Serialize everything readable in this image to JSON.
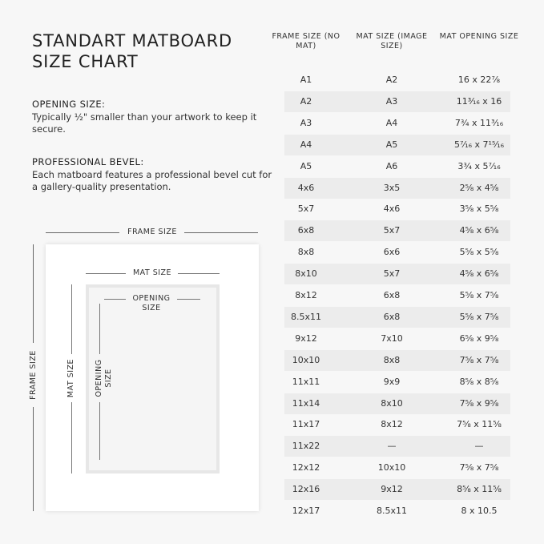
{
  "title": [
    "STANDART MATBOARD",
    "SIZE CHART"
  ],
  "opening": {
    "heading": "OPENING SIZE:",
    "text": "Typically ½\" smaller than your artwork to keep it secure."
  },
  "bevel": {
    "heading": "PROFESSIONAL BEVEL:",
    "text": "Each matboard features a professional bevel cut for a gallery-quality presentation."
  },
  "diagram": {
    "frame_size": "FRAME SIZE",
    "mat_size": "MAT SIZE",
    "opening_size": "OPENING SIZE"
  },
  "table": {
    "headers": [
      "FRAME SIZE (NO MAT)",
      "MAT SIZE (IMAGE SIZE)",
      "MAT OPENING SIZE"
    ],
    "rows": [
      [
        "A1",
        "A2",
        "16 x 22⅞"
      ],
      [
        "A2",
        "A3",
        "11³⁄₁₆ x 16"
      ],
      [
        "A3",
        "A4",
        "7¾ x 11³⁄₁₆"
      ],
      [
        "A4",
        "A5",
        "5⁷⁄₁₆ x 7¹⁵⁄₁₆"
      ],
      [
        "A5",
        "A6",
        "3¾ x 5⁷⁄₁₆"
      ],
      [
        "4x6",
        "3x5",
        "2⅝ x 4⅝"
      ],
      [
        "5x7",
        "4x6",
        "3⅝ x 5⅝"
      ],
      [
        "6x8",
        "5x7",
        "4⅝ x 6⅝"
      ],
      [
        "8x8",
        "6x6",
        "5⅝ x 5⅝"
      ],
      [
        "8x10",
        "5x7",
        "4⅝ x 6⅝"
      ],
      [
        "8x12",
        "6x8",
        "5⅝ x 7⅝"
      ],
      [
        "8.5x11",
        "6x8",
        "5⅝ x 7⅝"
      ],
      [
        "9x12",
        "7x10",
        "6⅝ x 9⅝"
      ],
      [
        "10x10",
        "8x8",
        "7⅝ x 7⅝"
      ],
      [
        "11x11",
        "9x9",
        "8⅝ x 8⅝"
      ],
      [
        "11x14",
        "8x10",
        "7⅝ x 9⅝"
      ],
      [
        "11x17",
        "8x12",
        "7⅝ x 11⅝"
      ],
      [
        "11x22",
        "—",
        "—"
      ],
      [
        "12x12",
        "10x10",
        "7⅝ x 7⅝"
      ],
      [
        "12x16",
        "9x12",
        "8⅝ x 11⅝"
      ],
      [
        "12x17",
        "8.5x11",
        "8 x 10.5"
      ]
    ]
  }
}
